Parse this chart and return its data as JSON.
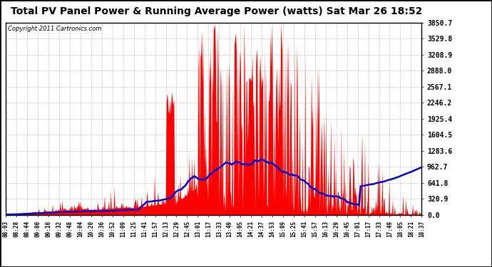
{
  "title": "Total PV Panel Power & Running Average Power (watts) Sat Mar 26 18:52",
  "copyright": "Copyright 2011 Cartronics.com",
  "background_color": "#ffffff",
  "plot_bg_color": "#ffffff",
  "bar_color": "#ff0000",
  "line_color": "#0000cc",
  "grid_color": "#999999",
  "ymin": 0.0,
  "ymax": 3850.7,
  "yticks": [
    0.0,
    320.9,
    641.8,
    962.7,
    1283.6,
    1604.5,
    1925.4,
    2246.2,
    2567.1,
    2888.0,
    3208.9,
    3529.8,
    3850.7
  ],
  "x_labels": [
    "08:03",
    "08:28",
    "08:44",
    "09:00",
    "09:16",
    "09:32",
    "09:48",
    "10:04",
    "10:20",
    "10:36",
    "10:52",
    "11:09",
    "11:25",
    "11:41",
    "11:57",
    "12:13",
    "12:29",
    "12:45",
    "13:01",
    "13:17",
    "13:33",
    "13:49",
    "14:05",
    "14:21",
    "14:37",
    "14:53",
    "15:09",
    "15:25",
    "15:41",
    "15:57",
    "16:13",
    "16:29",
    "16:45",
    "17:01",
    "17:17",
    "17:33",
    "17:49",
    "18:05",
    "18:21",
    "18:37"
  ],
  "n_points": 600,
  "title_fontsize": 10,
  "copyright_fontsize": 6,
  "ytick_fontsize": 7,
  "xtick_fontsize": 5.5
}
